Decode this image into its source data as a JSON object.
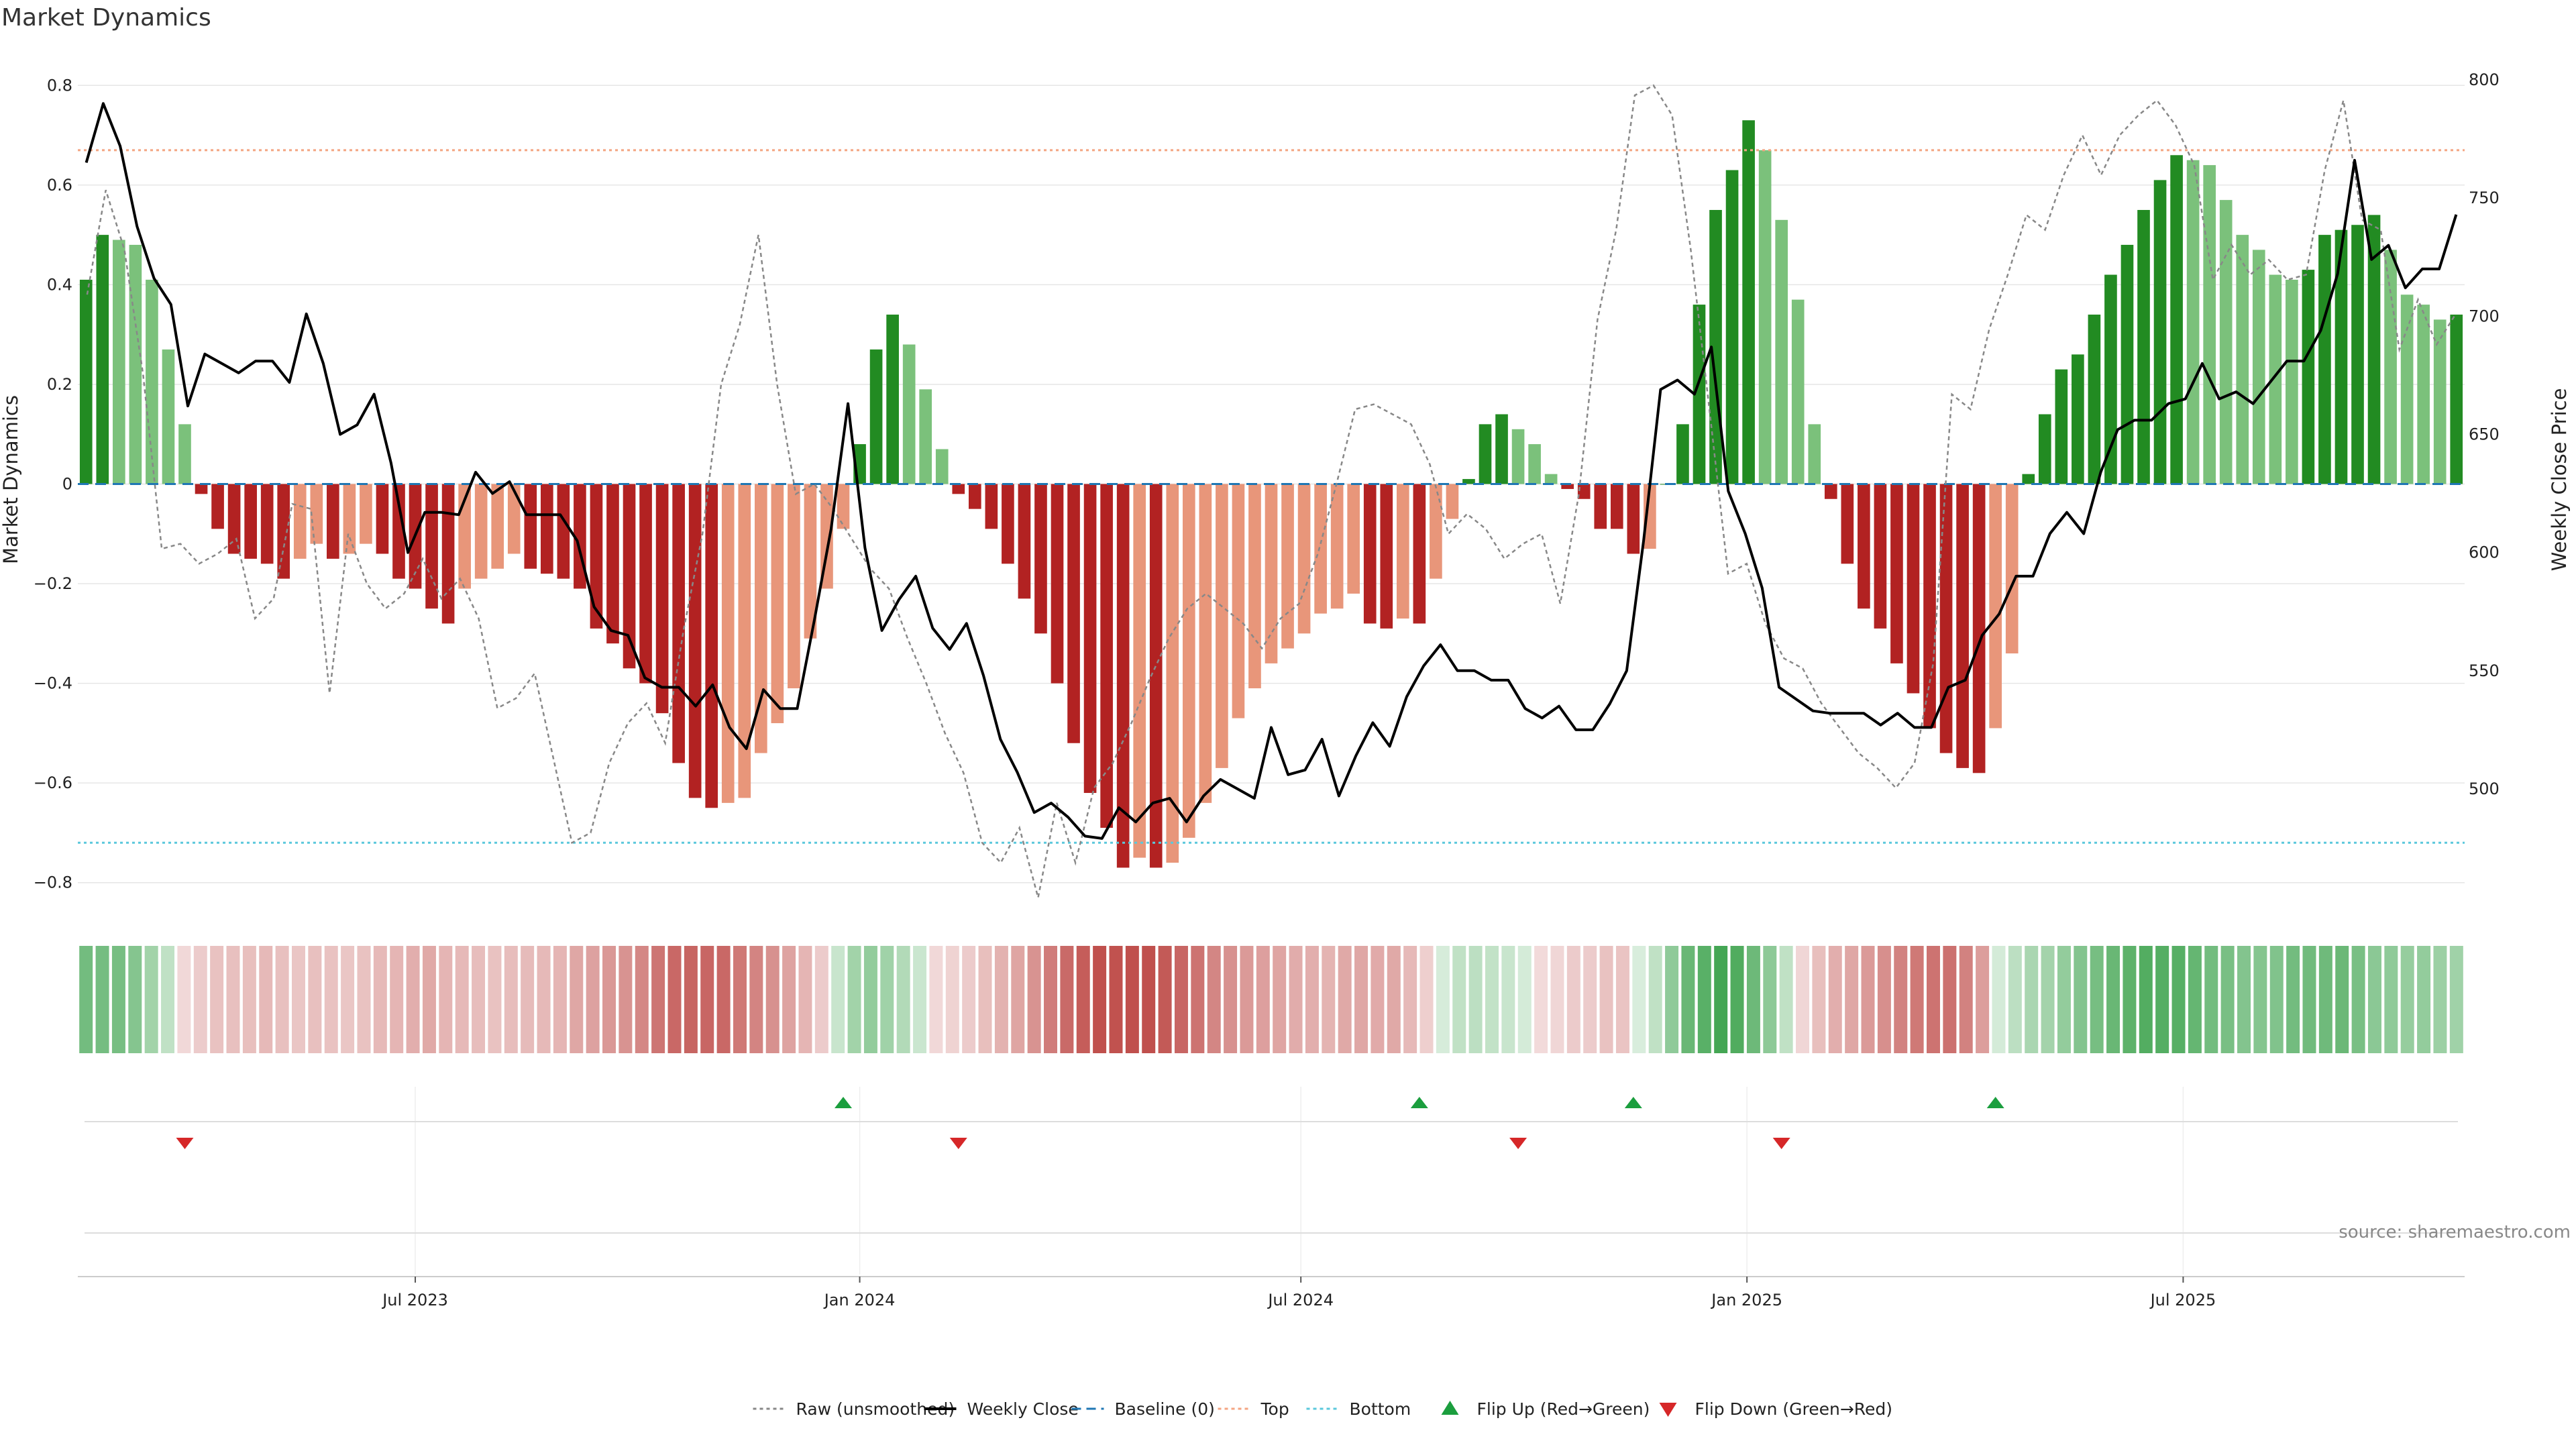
{
  "chart_data": {
    "type": "bar",
    "title": "Market Dynamics",
    "ylabel_left": "Market Dynamics",
    "ylabel_right": "Weekly Close Price",
    "ylim_left": [
      -0.83,
      0.83
    ],
    "ylim_right": [
      454,
      804
    ],
    "yticks_left": [
      0.8,
      0.6,
      0.4,
      0.2,
      0,
      -0.2,
      -0.4,
      -0.6,
      -0.8
    ],
    "yticks_left_labels": [
      "0.8",
      "0.6",
      "0.4",
      "0.2",
      "0",
      "−0.2",
      "−0.4",
      "−0.6",
      "−0.8"
    ],
    "yticks_right": [
      800,
      750,
      700,
      650,
      600,
      550,
      500
    ],
    "yticks_right_labels": [
      "800",
      "750",
      "700",
      "650",
      "600",
      "550",
      "500"
    ],
    "x_ticks": [
      {
        "label": "Jul 2023",
        "index": 20.5
      },
      {
        "label": "Jan 2024",
        "index": 47.5
      },
      {
        "label": "Jul 2024",
        "index": 74.3
      },
      {
        "label": "Jan 2025",
        "index": 101.4
      },
      {
        "label": "Jul 2025",
        "index": 127.9
      }
    ],
    "top_level": 0.67,
    "bottom_level": -0.72,
    "baseline": 0,
    "dynamics": [
      0.41,
      0.5,
      0.49,
      0.48,
      0.41,
      0.27,
      0.12,
      -0.02,
      -0.09,
      -0.14,
      -0.15,
      -0.16,
      -0.19,
      -0.15,
      -0.12,
      -0.15,
      -0.14,
      -0.12,
      -0.14,
      -0.19,
      -0.21,
      -0.25,
      -0.28,
      -0.21,
      -0.19,
      -0.17,
      -0.14,
      -0.17,
      -0.18,
      -0.19,
      -0.21,
      -0.29,
      -0.32,
      -0.37,
      -0.4,
      -0.46,
      -0.56,
      -0.63,
      -0.65,
      -0.64,
      -0.63,
      -0.54,
      -0.48,
      -0.41,
      -0.31,
      -0.21,
      -0.09,
      0.08,
      0.27,
      0.34,
      0.28,
      0.19,
      0.07,
      -0.02,
      -0.05,
      -0.09,
      -0.16,
      -0.23,
      -0.3,
      -0.4,
      -0.52,
      -0.62,
      -0.69,
      -0.77,
      -0.75,
      -0.77,
      -0.76,
      -0.71,
      -0.64,
      -0.57,
      -0.47,
      -0.41,
      -0.36,
      -0.33,
      -0.3,
      -0.26,
      -0.25,
      -0.22,
      -0.28,
      -0.29,
      -0.27,
      -0.28,
      -0.19,
      -0.07,
      0.01,
      0.12,
      0.14,
      0.11,
      0.08,
      0.02,
      -0.01,
      -0.03,
      -0.09,
      -0.09,
      -0.14,
      -0.13,
      0.0,
      0.12,
      0.36,
      0.55,
      0.63,
      0.73,
      0.67,
      0.53,
      0.37,
      0.12,
      -0.03,
      -0.16,
      -0.25,
      -0.29,
      -0.36,
      -0.42,
      -0.49,
      -0.54,
      -0.57,
      -0.58,
      -0.49,
      -0.34,
      0.02,
      0.14,
      0.23,
      0.26,
      0.34,
      0.42,
      0.48,
      0.55,
      0.61,
      0.66,
      0.65,
      0.64,
      0.57,
      0.5,
      0.47,
      0.42,
      0.41,
      0.43,
      0.5,
      0.51,
      0.52,
      0.54,
      0.47,
      0.38,
      0.36,
      0.33,
      0.34
    ],
    "raw_unsmoothed": [
      0.38,
      0.59,
      0.47,
      0.22,
      -0.13,
      -0.12,
      -0.16,
      -0.14,
      -0.11,
      -0.27,
      -0.23,
      -0.04,
      -0.05,
      -0.42,
      -0.1,
      -0.2,
      -0.25,
      -0.22,
      -0.15,
      -0.23,
      -0.19,
      -0.27,
      -0.45,
      -0.43,
      -0.38,
      -0.55,
      -0.72,
      -0.7,
      -0.56,
      -0.48,
      -0.44,
      -0.52,
      -0.29,
      -0.1,
      0.2,
      0.32,
      0.5,
      0.2,
      -0.02,
      0.0,
      -0.05,
      -0.11,
      -0.17,
      -0.21,
      -0.31,
      -0.4,
      -0.5,
      -0.58,
      -0.72,
      -0.76,
      -0.69,
      -0.83,
      -0.64,
      -0.76,
      -0.61,
      -0.56,
      -0.48,
      -0.39,
      -0.31,
      -0.25,
      -0.22,
      -0.25,
      -0.28,
      -0.33,
      -0.27,
      -0.24,
      -0.14,
      0.0,
      0.15,
      0.16,
      0.14,
      0.12,
      0.04,
      -0.1,
      -0.06,
      -0.09,
      -0.15,
      -0.12,
      -0.1,
      -0.24,
      -0.02,
      0.33,
      0.51,
      0.78,
      0.8,
      0.74,
      0.47,
      0.15,
      -0.18,
      -0.16,
      -0.28,
      -0.35,
      -0.37,
      -0.44,
      -0.49,
      -0.54,
      -0.57,
      -0.61,
      -0.56,
      -0.36,
      0.18,
      0.15,
      0.31,
      0.42,
      0.54,
      0.51,
      0.62,
      0.7,
      0.62,
      0.7,
      0.74,
      0.77,
      0.72,
      0.64,
      0.41,
      0.48,
      0.42,
      0.45,
      0.41,
      0.42,
      0.63,
      0.77,
      0.53,
      0.51,
      0.27,
      0.37,
      0.28,
      0.34
    ],
    "raw_x_offset": 0,
    "weekly_close": [
      765,
      790,
      772,
      738,
      716,
      705,
      662,
      684,
      680,
      676,
      681,
      681,
      672,
      701,
      680,
      650,
      654,
      667,
      638,
      600,
      617,
      617,
      616,
      634,
      625,
      630,
      616,
      616,
      616,
      605,
      577,
      567,
      565,
      547,
      543,
      543,
      535,
      544,
      526,
      517,
      542,
      534,
      534,
      571,
      610,
      663,
      602,
      567,
      580,
      590,
      568,
      559,
      570,
      548,
      521,
      507,
      490,
      494,
      488,
      480,
      479,
      492,
      486,
      494,
      496,
      486,
      497,
      504,
      500,
      496,
      526,
      506,
      508,
      521,
      497,
      514,
      528,
      518,
      539,
      552,
      561,
      550,
      550,
      546,
      546,
      534,
      530,
      535,
      525,
      525,
      536,
      550,
      605,
      669,
      673,
      667,
      687,
      626,
      608,
      585,
      543,
      538,
      533,
      532,
      532,
      532,
      527,
      532,
      526,
      526,
      543,
      546,
      565,
      574,
      590,
      590,
      608,
      617,
      608,
      634,
      652,
      656,
      656,
      663,
      665,
      680,
      665,
      668,
      663,
      672,
      681,
      681,
      694,
      718,
      766,
      724,
      730,
      712,
      720,
      720,
      743
    ],
    "weekly_close_x_offset": 0.5,
    "strip_values": [
      0.5,
      0.49,
      0.48,
      0.41,
      0.27,
      0.12,
      -0.02,
      -0.09,
      -0.14,
      -0.15,
      -0.16,
      -0.19,
      -0.15,
      -0.12,
      -0.15,
      -0.14,
      -0.12,
      -0.14,
      -0.19,
      -0.21,
      -0.25,
      -0.28,
      -0.21,
      -0.19,
      -0.17,
      -0.14,
      -0.17,
      -0.18,
      -0.19,
      -0.21,
      -0.29,
      -0.32,
      -0.37,
      -0.4,
      -0.46,
      -0.56,
      -0.63,
      -0.65,
      -0.64,
      -0.63,
      -0.54,
      -0.48,
      -0.41,
      -0.31,
      -0.21,
      -0.09,
      0.08,
      0.27,
      0.34,
      0.28,
      0.19,
      0.07,
      -0.02,
      -0.05,
      -0.09,
      -0.16,
      -0.23,
      -0.3,
      -0.4,
      -0.52,
      -0.62,
      -0.69,
      -0.77,
      -0.75,
      -0.77,
      -0.76,
      -0.71,
      -0.64,
      -0.57,
      -0.47,
      -0.41,
      -0.36,
      -0.33,
      -0.3,
      -0.26,
      -0.25,
      -0.22,
      -0.28,
      -0.29,
      -0.27,
      -0.28,
      -0.19,
      -0.07,
      0.01,
      0.12,
      0.14,
      0.11,
      0.08,
      0.02,
      -0.01,
      -0.03,
      -0.09,
      -0.09,
      -0.14,
      -0.13,
      0.0,
      0.12,
      0.36,
      0.55,
      0.63,
      0.73,
      0.67,
      0.53,
      0.37,
      0.12,
      -0.03,
      -0.16,
      -0.25,
      -0.29,
      -0.36,
      -0.42,
      -0.49,
      -0.54,
      -0.57,
      -0.58,
      -0.49,
      -0.34,
      0.02,
      0.14,
      0.23,
      0.26,
      0.34,
      0.42,
      0.48,
      0.55,
      0.61,
      0.66,
      0.65,
      0.64,
      0.57,
      0.5,
      0.47,
      0.42,
      0.41,
      0.43,
      0.5,
      0.51,
      0.52,
      0.54,
      0.47,
      0.38,
      0.36,
      0.33,
      0.34,
      0.3,
      0.28
    ],
    "flip_up_indices": [
      46.5,
      81.5,
      94.5,
      116.5
    ],
    "flip_down_indices": [
      6.5,
      53.5,
      87.5,
      103.5
    ],
    "legend": [
      {
        "label": "Raw (unsmoothed)",
        "style": "dotted-line",
        "color": "#888888"
      },
      {
        "label": "Weekly Close",
        "style": "solid-line",
        "color": "#000000"
      },
      {
        "label": "Baseline (0)",
        "style": "dashed-line",
        "color": "#1f77b4"
      },
      {
        "label": "Top",
        "style": "dotted-line",
        "color": "#f4a582"
      },
      {
        "label": "Bottom",
        "style": "dotted-line",
        "color": "#5bc8dc"
      },
      {
        "label": "Flip Up (Red→Green)",
        "style": "triangle-up",
        "color": "#1b9e3e"
      },
      {
        "label": "Flip Down (Green→Red)",
        "style": "triangle-down",
        "color": "#d62728"
      }
    ],
    "colors": {
      "green_strong": "#228b22",
      "green_light": "#7bc17b",
      "red_strong": "#b22222",
      "red_light": "#e8967a",
      "raw": "#888888",
      "close": "#000000",
      "baseline": "#1f77b4",
      "top": "#f4a582",
      "bottom": "#5bc8dc",
      "flip_up": "#1b9e3e",
      "flip_down": "#d62728",
      "grid": "#e6e6e6"
    },
    "source": "source: sharemaestro.com"
  }
}
